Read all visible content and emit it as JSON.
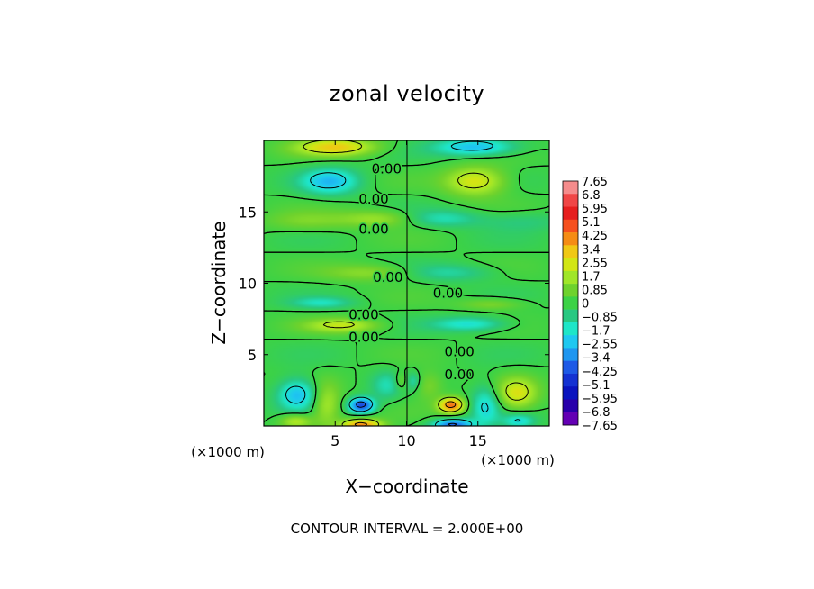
{
  "chart_data": {
    "type": "heatmap",
    "title": "zonal velocity",
    "xlabel": "X−coordinate",
    "ylabel": "Z−coordinate",
    "x_unit_label": "(×1000 m)",
    "y_unit_label": "(×1000 m)",
    "x_range": [
      0,
      20
    ],
    "y_range": [
      0,
      20
    ],
    "x_ticks": [
      5,
      10,
      15
    ],
    "y_ticks": [
      5,
      10,
      15
    ],
    "x_tick_labels": [
      "5",
      "10",
      "15"
    ],
    "y_tick_labels": [
      "5",
      "10",
      "15"
    ],
    "contour_labels": [
      {
        "text": "0.00",
        "x": 8.6,
        "y": 18.0
      },
      {
        "text": "0.00",
        "x": 7.7,
        "y": 15.9
      },
      {
        "text": "0.00",
        "x": 7.7,
        "y": 13.8
      },
      {
        "text": "0.00",
        "x": 8.7,
        "y": 10.4
      },
      {
        "text": "0.00",
        "x": 12.9,
        "y": 9.3
      },
      {
        "text": "0.00",
        "x": 7.0,
        "y": 7.8
      },
      {
        "text": "0.00",
        "x": 7.0,
        "y": 6.2
      },
      {
        "text": "0.00",
        "x": 13.7,
        "y": 5.2
      },
      {
        "text": "0.00",
        "x": 13.7,
        "y": 3.6
      }
    ],
    "features": [
      {
        "sign": "+",
        "x": 5.0,
        "y": 19.6,
        "rx": 2.8,
        "ry": 0.6,
        "amp": 3.2
      },
      {
        "sign": "-",
        "x": 14.8,
        "y": 19.6,
        "rx": 2.8,
        "ry": 0.6,
        "amp": -2.8
      },
      {
        "sign": "-",
        "x": 4.6,
        "y": 17.2,
        "rx": 2.0,
        "ry": 0.9,
        "amp": -2.6
      },
      {
        "sign": "+",
        "x": 14.8,
        "y": 17.2,
        "rx": 2.1,
        "ry": 1.0,
        "amp": 2.8
      },
      {
        "sign": "+",
        "x": 8.0,
        "y": 14.6,
        "rx": 2.6,
        "ry": 0.6,
        "amp": 1.6
      },
      {
        "sign": "-",
        "x": 12.5,
        "y": 14.6,
        "rx": 2.6,
        "ry": 0.6,
        "amp": -1.4
      },
      {
        "sign": "+",
        "x": 3.0,
        "y": 14.4,
        "rx": 3.0,
        "ry": 0.7,
        "amp": 1.0
      },
      {
        "sign": "-",
        "x": 18.0,
        "y": 14.4,
        "rx": 3.0,
        "ry": 0.7,
        "amp": -0.8
      },
      {
        "sign": "+",
        "x": 7.5,
        "y": 10.8,
        "rx": 3.2,
        "ry": 0.6,
        "amp": 1.4
      },
      {
        "sign": "-",
        "x": 13.0,
        "y": 10.8,
        "rx": 3.2,
        "ry": 0.6,
        "amp": -1.2
      },
      {
        "sign": "-",
        "x": 4.0,
        "y": 8.7,
        "rx": 2.2,
        "ry": 0.4,
        "amp": -1.4
      },
      {
        "sign": "+",
        "x": 15.9,
        "y": 8.6,
        "rx": 2.2,
        "ry": 0.4,
        "amp": 1.2
      },
      {
        "sign": "+",
        "x": 5.5,
        "y": 7.1,
        "rx": 2.6,
        "ry": 0.5,
        "amp": 2.2
      },
      {
        "sign": "-",
        "x": 14.4,
        "y": 7.2,
        "rx": 2.6,
        "ry": 0.5,
        "amp": -2.0
      },
      {
        "sign": "-",
        "x": 2.3,
        "y": 2.3,
        "rx": 1.4,
        "ry": 1.1,
        "amp": -2.8
      },
      {
        "sign": "+",
        "x": 17.7,
        "y": 2.3,
        "rx": 1.4,
        "ry": 1.1,
        "amp": 2.6
      },
      {
        "sign": "+",
        "x": 4.3,
        "y": 1.5,
        "rx": 1.0,
        "ry": 1.5,
        "amp": 2.0
      },
      {
        "sign": "-",
        "x": 15.5,
        "y": 1.5,
        "rx": 1.0,
        "ry": 1.5,
        "amp": -2.0
      },
      {
        "sign": "-",
        "x": 6.8,
        "y": 1.5,
        "rx": 0.9,
        "ry": 0.55,
        "amp": -4.6
      },
      {
        "sign": "+",
        "x": 13.1,
        "y": 1.5,
        "rx": 0.9,
        "ry": 0.55,
        "amp": 4.6
      },
      {
        "sign": "+",
        "x": 6.8,
        "y": 0.1,
        "rx": 1.4,
        "ry": 0.45,
        "amp": 4.4
      },
      {
        "sign": "-",
        "x": 13.2,
        "y": 0.1,
        "rx": 1.4,
        "ry": 0.45,
        "amp": -4.2
      },
      {
        "sign": "+",
        "x": 2.2,
        "y": 0.4,
        "rx": 1.1,
        "ry": 0.5,
        "amp": 2.2
      },
      {
        "sign": "-",
        "x": 17.8,
        "y": 0.4,
        "rx": 1.1,
        "ry": 0.5,
        "amp": -2.0
      },
      {
        "sign": "+",
        "x": 9.6,
        "y": 3.2,
        "rx": 0.5,
        "ry": 0.6,
        "amp": 1.2
      },
      {
        "sign": "-",
        "x": 10.4,
        "y": 3.2,
        "rx": 0.5,
        "ry": 0.6,
        "amp": -1.2
      },
      {
        "sign": "+",
        "x": 11.5,
        "y": 2.9,
        "rx": 1.0,
        "ry": 1.0,
        "amp": 1.2
      },
      {
        "sign": "-",
        "x": 8.5,
        "y": 2.9,
        "rx": 1.0,
        "ry": 1.0,
        "amp": -1.2
      }
    ],
    "colorbar": {
      "labels": [
        "7.65",
        "6.8",
        "5.95",
        "5.1",
        "4.25",
        "3.4",
        "2.55",
        "1.7",
        "0.85",
        "0",
        "−0.85",
        "−1.7",
        "−2.55",
        "−3.4",
        "−4.25",
        "−5.1",
        "−5.95",
        "−6.8",
        "−7.65"
      ],
      "colors": [
        "#f58c8c",
        "#f04646",
        "#e61e1e",
        "#f5501e",
        "#f58c14",
        "#f0c814",
        "#d2e614",
        "#a0e628",
        "#6ed22d",
        "#3cd246",
        "#28c882",
        "#1ee6c8",
        "#1ec8f0",
        "#1e96f0",
        "#1e5ae6",
        "#1432d2",
        "#0a14be",
        "#2800aa",
        "#6400b4"
      ]
    },
    "contour_interval_text": "CONTOUR INTERVAL = 2.000E+00",
    "legend": "right"
  }
}
